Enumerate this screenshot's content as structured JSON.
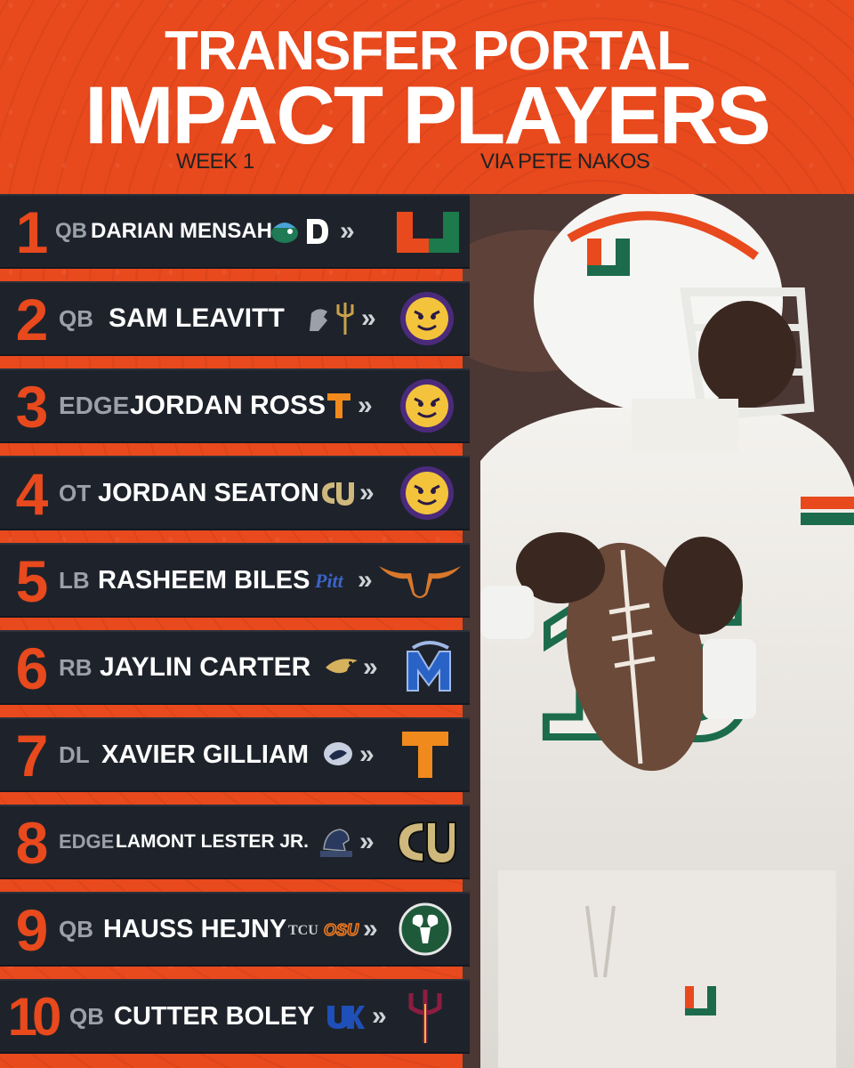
{
  "header": {
    "title_line1": "TRANSFER PORTAL",
    "title_line2": "IMPACT PLAYERS",
    "week": "WEEK 1",
    "source": "VIA PETE NAKOS"
  },
  "arrow_glyph": "»",
  "players": [
    {
      "rank": "1",
      "position": "QB",
      "name": "DARIAN MENSAH"
    },
    {
      "rank": "2",
      "position": "QB",
      "name": "SAM LEAVITT"
    },
    {
      "rank": "3",
      "position": "EDGE",
      "name": "JORDAN ROSS"
    },
    {
      "rank": "4",
      "position": "OT",
      "name": "JORDAN SEATON"
    },
    {
      "rank": "5",
      "position": "LB",
      "name": "RASHEEM BILES"
    },
    {
      "rank": "6",
      "position": "RB",
      "name": "JAYLIN CARTER"
    },
    {
      "rank": "7",
      "position": "DL",
      "name": "XAVIER GILLIAM"
    },
    {
      "rank": "8",
      "position": "EDGE",
      "name": "LAMONT LESTER JR."
    },
    {
      "rank": "9",
      "position": "QB",
      "name": "HAUSS HEJNY"
    },
    {
      "rank": "10",
      "position": "QB",
      "name": "CUTTER BOLEY"
    }
  ],
  "colors": {
    "background": "#e8491d",
    "row": "#1e232b",
    "rank": "#e8491d",
    "position": "#9aa1a8",
    "name": "#ffffff"
  }
}
